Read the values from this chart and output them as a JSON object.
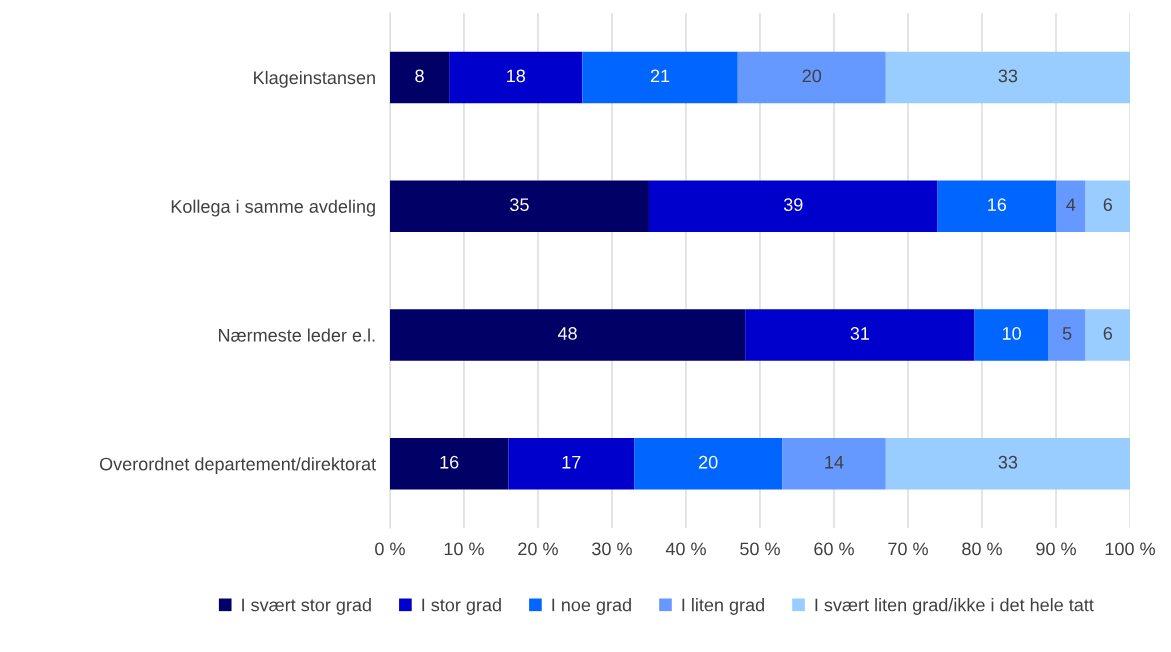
{
  "chart_data": {
    "type": "bar",
    "orientation": "horizontal",
    "stacked": true,
    "data_labels": true,
    "grid": "x",
    "legend": "bottom",
    "categories": [
      "Klageinstansen",
      "Kollega i samme avdeling",
      "Nærmeste leder e.l.",
      "Overordnet departement/direktorat"
    ],
    "series": [
      {
        "name": "I svært stor grad",
        "color": "#000066",
        "values": [
          8,
          35,
          48,
          16
        ]
      },
      {
        "name": "I stor grad",
        "color": "#0000cc",
        "values": [
          18,
          39,
          31,
          17
        ]
      },
      {
        "name": "I noe grad",
        "color": "#0066ff",
        "values": [
          21,
          16,
          10,
          20
        ]
      },
      {
        "name": "I liten grad",
        "color": "#6699ff",
        "values": [
          20,
          4,
          5,
          14
        ]
      },
      {
        "name": "I svært liten grad/ikke i det hele tatt",
        "color": "#99ccff",
        "values": [
          33,
          6,
          6,
          33
        ]
      }
    ],
    "xlim": [
      0,
      100
    ],
    "xticks": [
      {
        "value": 0,
        "label": "0 %"
      },
      {
        "value": 10,
        "label": "10 %"
      },
      {
        "value": 20,
        "label": "20 %"
      },
      {
        "value": 30,
        "label": "30 %"
      },
      {
        "value": 40,
        "label": "40 %"
      },
      {
        "value": 50,
        "label": "50 %"
      },
      {
        "value": 60,
        "label": "60 %"
      },
      {
        "value": 70,
        "label": "70 %"
      },
      {
        "value": 80,
        "label": "80 %"
      },
      {
        "value": 90,
        "label": "90 %"
      },
      {
        "value": 100,
        "label": "100 %"
      }
    ]
  }
}
